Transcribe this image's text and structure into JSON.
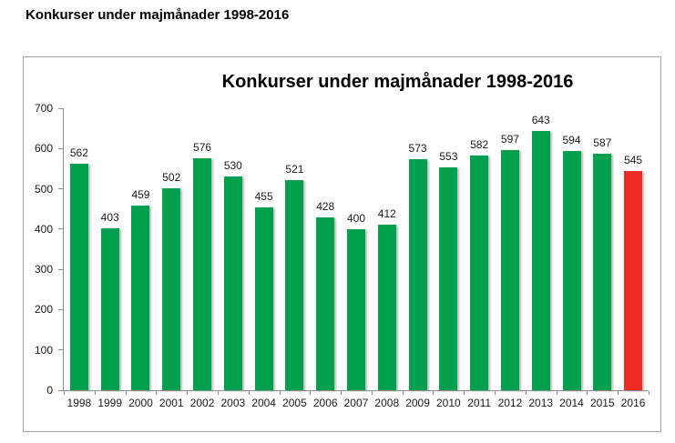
{
  "page": {
    "heading": "Konkurser under majmånader 1998-2016"
  },
  "chart_data": {
    "type": "bar",
    "title": "Konkurser under majmånader 1998-2016",
    "categories": [
      "1998",
      "1999",
      "2000",
      "2001",
      "2002",
      "2003",
      "2004",
      "2005",
      "2006",
      "2007",
      "2008",
      "2009",
      "2010",
      "2011",
      "2012",
      "2013",
      "2014",
      "2015",
      "2016"
    ],
    "values": [
      562,
      403,
      459,
      502,
      576,
      530,
      455,
      521,
      428,
      400,
      412,
      573,
      553,
      582,
      597,
      643,
      594,
      587,
      545
    ],
    "xlabel": "",
    "ylabel": "",
    "ylim": [
      0,
      700
    ],
    "ytick_step": 100,
    "grid": false,
    "legend": "none",
    "data_labels": true,
    "bar_color": "#00A04E",
    "highlight_color": "#EE2C24",
    "highlight_index": 18,
    "axis_color": "#8c8c8c"
  }
}
